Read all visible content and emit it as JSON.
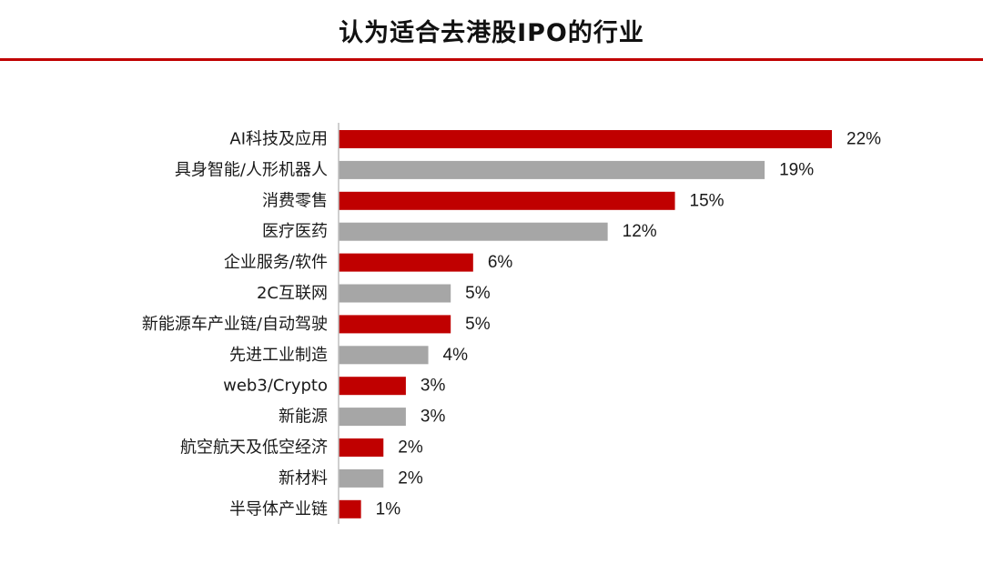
{
  "chart_data": {
    "type": "bar",
    "orientation": "horizontal",
    "title": "认为适合去港股IPO的行业",
    "categories": [
      "AI科技及应用",
      "具身智能/人形机器人",
      "消费零售",
      "医疗医药",
      "企业服务/软件",
      "2C互联网",
      "新能源车产业链/自动驾驶",
      "先进工业制造",
      "web3/Crypto",
      "新能源",
      "航空航天及低空经济",
      "新材料",
      "半导体产业链"
    ],
    "values": [
      22,
      19,
      15,
      12,
      6,
      5,
      5,
      4,
      3,
      3,
      2,
      2,
      1
    ],
    "value_labels": [
      "22%",
      "19%",
      "15%",
      "12%",
      "6%",
      "5%",
      "5%",
      "4%",
      "3%",
      "3%",
      "2%",
      "2%",
      "1%"
    ],
    "xlim": [
      0,
      22
    ],
    "grid": false,
    "legend": "none"
  },
  "colors": {
    "bar_primary": "#c00000",
    "bar_secondary": "#a6a6a6",
    "rule": "#c00000",
    "axis": "#bfbfbf"
  }
}
